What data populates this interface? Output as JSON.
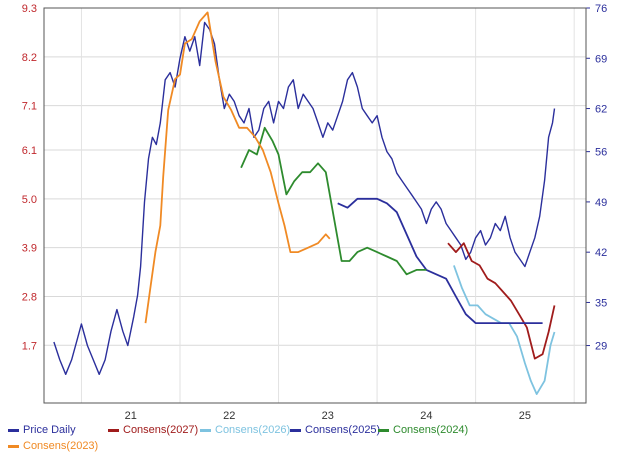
{
  "chart_data": {
    "type": "line",
    "title": "",
    "xlabel": "",
    "ylabel": "",
    "x_ticks": [
      "21",
      "22",
      "23",
      "24",
      "25"
    ],
    "xlim": [
      2020.62,
      2026.12
    ],
    "y_left": {
      "ticks": [
        "9.3",
        "8.2",
        "7.1",
        "6.1",
        "5.0",
        "3.9",
        "2.8",
        "1.7"
      ],
      "ylim": [
        0.4,
        9.3
      ],
      "color": "#c0282d"
    },
    "y_right": {
      "ticks": [
        "76",
        "69",
        "62",
        "56",
        "49",
        "42",
        "35",
        "29"
      ],
      "ylim": [
        21,
        76
      ],
      "color": "#2b2f9c"
    },
    "grid": true,
    "legend_position": "bottom",
    "series": [
      {
        "name": "Price Daily",
        "color": "#2b2f9c",
        "axis": "right",
        "points": [
          [
            2020.72,
            29.5
          ],
          [
            2020.78,
            27
          ],
          [
            2020.84,
            25
          ],
          [
            2020.9,
            27
          ],
          [
            2020.96,
            30
          ],
          [
            2021.0,
            32
          ],
          [
            2021.06,
            29
          ],
          [
            2021.12,
            27
          ],
          [
            2021.18,
            25
          ],
          [
            2021.24,
            27
          ],
          [
            2021.3,
            31
          ],
          [
            2021.36,
            34
          ],
          [
            2021.42,
            31
          ],
          [
            2021.47,
            29
          ],
          [
            2021.53,
            33
          ],
          [
            2021.57,
            36
          ],
          [
            2021.6,
            40
          ],
          [
            2021.64,
            49
          ],
          [
            2021.68,
            55
          ],
          [
            2021.72,
            58
          ],
          [
            2021.76,
            57
          ],
          [
            2021.8,
            60
          ],
          [
            2021.85,
            66
          ],
          [
            2021.9,
            67
          ],
          [
            2021.95,
            65
          ],
          [
            2022.0,
            69
          ],
          [
            2022.05,
            72
          ],
          [
            2022.1,
            70
          ],
          [
            2022.15,
            72
          ],
          [
            2022.2,
            68
          ],
          [
            2022.25,
            74
          ],
          [
            2022.3,
            73
          ],
          [
            2022.35,
            71
          ],
          [
            2022.4,
            66
          ],
          [
            2022.45,
            62
          ],
          [
            2022.5,
            64
          ],
          [
            2022.55,
            63
          ],
          [
            2022.6,
            61
          ],
          [
            2022.65,
            60
          ],
          [
            2022.7,
            62
          ],
          [
            2022.75,
            58
          ],
          [
            2022.8,
            59
          ],
          [
            2022.85,
            62
          ],
          [
            2022.9,
            63
          ],
          [
            2022.95,
            60
          ],
          [
            2023.0,
            63
          ],
          [
            2023.05,
            62
          ],
          [
            2023.1,
            65
          ],
          [
            2023.15,
            66
          ],
          [
            2023.2,
            62
          ],
          [
            2023.25,
            64
          ],
          [
            2023.3,
            63
          ],
          [
            2023.35,
            62
          ],
          [
            2023.4,
            60
          ],
          [
            2023.45,
            58
          ],
          [
            2023.5,
            60
          ],
          [
            2023.55,
            59
          ],
          [
            2023.6,
            61
          ],
          [
            2023.65,
            63
          ],
          [
            2023.7,
            66
          ],
          [
            2023.75,
            67
          ],
          [
            2023.8,
            65
          ],
          [
            2023.85,
            62
          ],
          [
            2023.9,
            61
          ],
          [
            2023.95,
            60
          ],
          [
            2024.0,
            61
          ],
          [
            2024.05,
            58
          ],
          [
            2024.1,
            56
          ],
          [
            2024.15,
            55
          ],
          [
            2024.2,
            53
          ],
          [
            2024.25,
            52
          ],
          [
            2024.3,
            51
          ],
          [
            2024.35,
            50
          ],
          [
            2024.4,
            49
          ],
          [
            2024.45,
            48
          ],
          [
            2024.5,
            46
          ],
          [
            2024.55,
            48
          ],
          [
            2024.6,
            49
          ],
          [
            2024.65,
            48
          ],
          [
            2024.7,
            46
          ],
          [
            2024.75,
            45
          ],
          [
            2024.8,
            44
          ],
          [
            2024.85,
            43
          ],
          [
            2024.9,
            41
          ],
          [
            2024.95,
            42
          ],
          [
            2025.0,
            44
          ],
          [
            2025.05,
            45
          ],
          [
            2025.1,
            43
          ],
          [
            2025.15,
            44
          ],
          [
            2025.2,
            46
          ],
          [
            2025.25,
            45
          ],
          [
            2025.3,
            47
          ],
          [
            2025.35,
            44
          ],
          [
            2025.4,
            42
          ],
          [
            2025.45,
            41
          ],
          [
            2025.5,
            40
          ],
          [
            2025.55,
            42
          ],
          [
            2025.6,
            44
          ],
          [
            2025.65,
            47
          ],
          [
            2025.7,
            52
          ],
          [
            2025.74,
            58
          ],
          [
            2025.78,
            60
          ],
          [
            2025.8,
            62
          ]
        ]
      },
      {
        "name": "Consens(2027)",
        "color": "#a01c1c",
        "axis": "left",
        "points": [
          [
            2024.72,
            4.0
          ],
          [
            2024.8,
            3.8
          ],
          [
            2024.88,
            4.0
          ],
          [
            2024.96,
            3.6
          ],
          [
            2025.04,
            3.5
          ],
          [
            2025.12,
            3.2
          ],
          [
            2025.2,
            3.1
          ],
          [
            2025.28,
            2.9
          ],
          [
            2025.36,
            2.7
          ],
          [
            2025.44,
            2.4
          ],
          [
            2025.52,
            2.1
          ],
          [
            2025.6,
            1.4
          ],
          [
            2025.68,
            1.5
          ],
          [
            2025.74,
            2.0
          ],
          [
            2025.8,
            2.6
          ]
        ]
      },
      {
        "name": "Consens(2026)",
        "color": "#7ec3e0",
        "axis": "left",
        "points": [
          [
            2024.78,
            3.5
          ],
          [
            2024.86,
            3.0
          ],
          [
            2024.94,
            2.6
          ],
          [
            2025.02,
            2.6
          ],
          [
            2025.1,
            2.4
          ],
          [
            2025.18,
            2.3
          ],
          [
            2025.26,
            2.2
          ],
          [
            2025.34,
            2.2
          ],
          [
            2025.42,
            1.9
          ],
          [
            2025.5,
            1.3
          ],
          [
            2025.56,
            0.9
          ],
          [
            2025.62,
            0.6
          ],
          [
            2025.7,
            0.9
          ],
          [
            2025.76,
            1.7
          ],
          [
            2025.8,
            2.0
          ]
        ]
      },
      {
        "name": "Consens(2025)",
        "color": "#2b2f9c",
        "axis": "left",
        "points": [
          [
            2023.6,
            4.9
          ],
          [
            2023.7,
            4.8
          ],
          [
            2023.8,
            5.0
          ],
          [
            2023.9,
            5.0
          ],
          [
            2024.0,
            5.0
          ],
          [
            2024.1,
            4.9
          ],
          [
            2024.2,
            4.7
          ],
          [
            2024.3,
            4.2
          ],
          [
            2024.4,
            3.7
          ],
          [
            2024.5,
            3.4
          ],
          [
            2024.6,
            3.3
          ],
          [
            2024.7,
            3.2
          ],
          [
            2024.8,
            2.8
          ],
          [
            2024.9,
            2.4
          ],
          [
            2025.0,
            2.2
          ],
          [
            2025.1,
            2.2
          ],
          [
            2025.2,
            2.2
          ],
          [
            2025.3,
            2.2
          ],
          [
            2025.4,
            2.2
          ],
          [
            2025.5,
            2.2
          ],
          [
            2025.6,
            2.2
          ],
          [
            2025.68,
            2.2
          ]
        ]
      },
      {
        "name": "Consens(2024)",
        "color": "#2e8b2e",
        "axis": "left",
        "points": [
          [
            2022.62,
            5.7
          ],
          [
            2022.7,
            6.1
          ],
          [
            2022.78,
            6.0
          ],
          [
            2022.86,
            6.6
          ],
          [
            2022.94,
            6.3
          ],
          [
            2023.0,
            6.0
          ],
          [
            2023.08,
            5.1
          ],
          [
            2023.16,
            5.4
          ],
          [
            2023.24,
            5.6
          ],
          [
            2023.32,
            5.6
          ],
          [
            2023.4,
            5.8
          ],
          [
            2023.48,
            5.6
          ],
          [
            2023.56,
            4.6
          ],
          [
            2023.64,
            3.6
          ],
          [
            2023.72,
            3.6
          ],
          [
            2023.8,
            3.8
          ],
          [
            2023.9,
            3.9
          ],
          [
            2024.0,
            3.8
          ],
          [
            2024.1,
            3.7
          ],
          [
            2024.2,
            3.6
          ],
          [
            2024.3,
            3.3
          ],
          [
            2024.4,
            3.4
          ],
          [
            2024.5,
            3.4
          ]
        ]
      },
      {
        "name": "Consens(2023)",
        "color": "#f08a24",
        "axis": "left",
        "points": [
          [
            2021.65,
            2.2
          ],
          [
            2021.7,
            3.0
          ],
          [
            2021.75,
            3.8
          ],
          [
            2021.8,
            4.4
          ],
          [
            2021.83,
            5.5
          ],
          [
            2021.88,
            7.0
          ],
          [
            2021.95,
            7.7
          ],
          [
            2022.0,
            7.8
          ],
          [
            2022.05,
            8.5
          ],
          [
            2022.12,
            8.6
          ],
          [
            2022.2,
            9.0
          ],
          [
            2022.28,
            9.2
          ],
          [
            2022.36,
            8.1
          ],
          [
            2022.44,
            7.3
          ],
          [
            2022.52,
            7.0
          ],
          [
            2022.6,
            6.6
          ],
          [
            2022.68,
            6.6
          ],
          [
            2022.76,
            6.4
          ],
          [
            2022.84,
            6.1
          ],
          [
            2022.92,
            5.6
          ],
          [
            2023.0,
            4.9
          ],
          [
            2023.06,
            4.4
          ],
          [
            2023.12,
            3.8
          ],
          [
            2023.2,
            3.8
          ],
          [
            2023.3,
            3.9
          ],
          [
            2023.4,
            4.0
          ],
          [
            2023.48,
            4.2
          ],
          [
            2023.52,
            4.1
          ]
        ]
      }
    ]
  }
}
